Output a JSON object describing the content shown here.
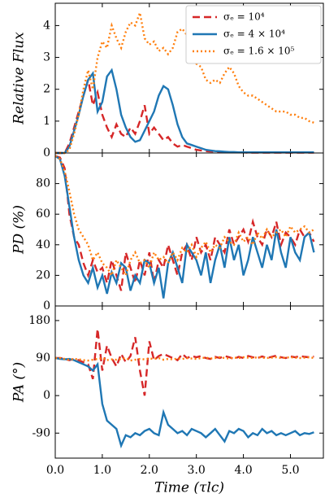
{
  "chart_data": [
    {
      "type": "line",
      "ylabel": "Relative Flux",
      "legend": "upper right",
      "xlim": [
        0,
        5.7
      ],
      "ylim": [
        0,
        4.7
      ],
      "yticks": [
        0,
        1,
        2,
        3,
        4
      ],
      "x": [
        0,
        0.1,
        0.2,
        0.3,
        0.4,
        0.5,
        0.6,
        0.7,
        0.8,
        0.9,
        1,
        1.1,
        1.2,
        1.3,
        1.4,
        1.5,
        1.6,
        1.7,
        1.8,
        1.9,
        2,
        2.1,
        2.2,
        2.3,
        2.4,
        2.5,
        2.6,
        2.7,
        2.8,
        2.9,
        3,
        3.1,
        3.2,
        3.3,
        3.4,
        3.5,
        3.6,
        3.7,
        3.8,
        3.9,
        4,
        4.1,
        4.2,
        4.3,
        4.4,
        4.5,
        4.6,
        4.7,
        4.8,
        4.9,
        5,
        5.1,
        5.2,
        5.3,
        5.4,
        5.5
      ],
      "series": [
        {
          "name": "σₑ = 10⁴",
          "color": "#d62728",
          "style": "dashed",
          "values": [
            0,
            0,
            0,
            0.3,
            0.8,
            1.3,
            1.8,
            2.3,
            1.5,
            1.9,
            1.2,
            0.8,
            0.5,
            0.9,
            0.6,
            0.5,
            0.8,
            0.6,
            1.0,
            1.5,
            0.6,
            0.8,
            0.6,
            0.4,
            0.5,
            0.3,
            0.2,
            0.25,
            0.2,
            0.15,
            0.1,
            0.08,
            0.06,
            0.05,
            0.04,
            0.03,
            0.03,
            0.02,
            0.02,
            0.02,
            0.02,
            0.01,
            0.01,
            0.01,
            0.01,
            0.01,
            0.01,
            0.01,
            0.01,
            0.01,
            0.01,
            0.01,
            0.01,
            0.01,
            0.01,
            0.01
          ]
        },
        {
          "name": "σₑ = 4 × 10⁴",
          "color": "#1f77b4",
          "style": "solid",
          "values": [
            0,
            0,
            0,
            0.2,
            0.7,
            1.2,
            1.8,
            2.3,
            2.5,
            1.3,
            1.6,
            2.4,
            2.6,
            2.0,
            1.2,
            0.8,
            0.5,
            0.35,
            0.4,
            0.7,
            1.0,
            1.3,
            1.8,
            2.1,
            2.0,
            1.5,
            0.9,
            0.5,
            0.3,
            0.25,
            0.2,
            0.15,
            0.1,
            0.08,
            0.06,
            0.05,
            0.04,
            0.03,
            0.03,
            0.02,
            0.02,
            0.02,
            0.02,
            0.02,
            0.02,
            0.02,
            0.02,
            0.02,
            0.02,
            0.02,
            0.02,
            0.02,
            0.02,
            0.02,
            0.02,
            0.02
          ]
        },
        {
          "name": "σₑ = 1.6 × 10⁵",
          "color": "#ff7f0e",
          "style": "dotted",
          "values": [
            0,
            0,
            0,
            0.1,
            0.6,
            1.2,
            2.0,
            2.6,
            2.0,
            3.0,
            3.5,
            3.3,
            4.0,
            3.6,
            3.3,
            3.8,
            4.1,
            4.0,
            4.4,
            3.6,
            3.4,
            3.5,
            3.2,
            3.3,
            3.1,
            3.3,
            3.8,
            3.9,
            3.7,
            3.3,
            2.8,
            2.7,
            2.3,
            2.2,
            2.3,
            2.2,
            2.5,
            2.7,
            2.5,
            2.1,
            1.9,
            1.8,
            1.8,
            1.7,
            1.6,
            1.5,
            1.4,
            1.3,
            1.3,
            1.3,
            1.2,
            1.2,
            1.1,
            1.1,
            1.0,
            0.95
          ]
        }
      ]
    },
    {
      "type": "line",
      "ylabel": "PD (%)",
      "xlim": [
        0,
        5.7
      ],
      "ylim": [
        0,
        100
      ],
      "yticks": [
        0,
        20,
        40,
        60,
        80
      ],
      "x": [
        0,
        0.1,
        0.2,
        0.3,
        0.4,
        0.5,
        0.6,
        0.7,
        0.8,
        0.9,
        1,
        1.1,
        1.2,
        1.3,
        1.4,
        1.5,
        1.6,
        1.7,
        1.8,
        1.9,
        2,
        2.1,
        2.2,
        2.3,
        2.4,
        2.5,
        2.6,
        2.7,
        2.8,
        2.9,
        3,
        3.1,
        3.2,
        3.3,
        3.4,
        3.5,
        3.6,
        3.7,
        3.8,
        3.9,
        4,
        4.1,
        4.2,
        4.3,
        4.4,
        4.5,
        4.6,
        4.7,
        4.8,
        4.9,
        5,
        5.1,
        5.2,
        5.3,
        5.4,
        5.5
      ],
      "series": [
        {
          "color": "#d62728",
          "style": "dashed",
          "values": [
            98,
            97,
            90,
            60,
            45,
            40,
            28,
            20,
            30,
            22,
            25,
            15,
            30,
            20,
            10,
            35,
            25,
            15,
            30,
            20,
            35,
            15,
            30,
            25,
            40,
            30,
            20,
            35,
            40,
            30,
            45,
            35,
            40,
            30,
            45,
            40,
            35,
            50,
            40,
            45,
            50,
            42,
            55,
            45,
            40,
            50,
            45,
            55,
            40,
            48,
            45,
            40,
            50,
            45,
            48,
            42
          ]
        },
        {
          "color": "#1f77b4",
          "style": "solid",
          "values": [
            98,
            96,
            85,
            65,
            45,
            30,
            20,
            15,
            25,
            12,
            20,
            8,
            22,
            15,
            28,
            25,
            10,
            20,
            15,
            30,
            28,
            15,
            25,
            5,
            28,
            35,
            25,
            15,
            40,
            35,
            30,
            20,
            35,
            15,
            30,
            40,
            25,
            45,
            30,
            40,
            20,
            30,
            45,
            35,
            25,
            40,
            30,
            50,
            35,
            25,
            45,
            35,
            30,
            45,
            48,
            35
          ]
        },
        {
          "color": "#ff7f0e",
          "style": "dotted",
          "values": [
            98,
            96,
            88,
            75,
            60,
            50,
            45,
            40,
            30,
            35,
            28,
            25,
            20,
            30,
            25,
            20,
            30,
            35,
            28,
            30,
            25,
            35,
            30,
            32,
            28,
            35,
            30,
            38,
            35,
            40,
            32,
            38,
            42,
            35,
            40,
            38,
            45,
            42,
            40,
            48,
            42,
            45,
            40,
            48,
            44,
            50,
            45,
            48,
            50,
            45,
            52,
            48,
            50,
            52,
            48,
            50
          ]
        }
      ]
    },
    {
      "type": "line",
      "ylabel": "PA (°)",
      "xlabel": "Time (τlc)",
      "xlim": [
        0,
        5.7
      ],
      "ylim": [
        -150,
        215
      ],
      "yticks": [
        -90,
        0,
        90,
        180
      ],
      "xticks": [
        {
          "value": 0,
          "label": "0.0"
        },
        {
          "value": 1,
          "label": "1.0"
        },
        {
          "value": 2,
          "label": "2.0"
        },
        {
          "value": 3,
          "label": "3.0"
        },
        {
          "value": 4,
          "label": "4.0"
        },
        {
          "value": 5,
          "label": "5.0"
        }
      ],
      "x": [
        0,
        0.1,
        0.2,
        0.3,
        0.4,
        0.5,
        0.6,
        0.7,
        0.8,
        0.9,
        1,
        1.1,
        1.2,
        1.3,
        1.4,
        1.5,
        1.6,
        1.7,
        1.8,
        1.9,
        2,
        2.1,
        2.2,
        2.3,
        2.4,
        2.5,
        2.6,
        2.7,
        2.8,
        2.9,
        3,
        3.1,
        3.2,
        3.3,
        3.4,
        3.5,
        3.6,
        3.7,
        3.8,
        3.9,
        4,
        4.1,
        4.2,
        4.3,
        4.4,
        4.5,
        4.6,
        4.7,
        4.8,
        4.9,
        5,
        5.1,
        5.2,
        5.3,
        5.4,
        5.5
      ],
      "series": [
        {
          "color": "#d62728",
          "style": "dashed",
          "values": [
            90,
            90,
            88,
            85,
            88,
            85,
            80,
            75,
            40,
            160,
            60,
            120,
            90,
            70,
            100,
            80,
            95,
            140,
            60,
            0,
            130,
            85,
            95,
            100,
            95,
            90,
            85,
            100,
            90,
            95,
            92,
            95,
            90,
            88,
            93,
            90,
            95,
            92,
            88,
            93,
            90,
            95,
            92,
            90,
            94,
            90,
            93,
            96,
            92,
            90,
            94,
            92,
            95,
            93,
            92,
            94
          ]
        },
        {
          "color": "#1f77b4",
          "style": "solid",
          "values": [
            90,
            88,
            87,
            88,
            85,
            80,
            75,
            70,
            60,
            75,
            -20,
            -60,
            -70,
            -80,
            -120,
            -95,
            -100,
            -90,
            -95,
            -85,
            -80,
            -90,
            -95,
            -40,
            -70,
            -80,
            -90,
            -85,
            -95,
            -80,
            -85,
            -90,
            -100,
            -90,
            -80,
            -95,
            -110,
            -85,
            -90,
            -80,
            -85,
            -100,
            -90,
            -95,
            -80,
            -90,
            -85,
            -95,
            -90,
            -95,
            -90,
            -85,
            -95,
            -90,
            -92,
            -88
          ]
        },
        {
          "color": "#ff7f0e",
          "style": "dotted",
          "values": [
            90,
            90,
            88,
            86,
            88,
            87,
            85,
            84,
            86,
            88,
            90,
            85,
            87,
            86,
            88,
            90,
            84,
            86,
            88,
            87,
            89,
            88,
            90,
            86,
            88,
            87,
            89,
            88,
            90,
            89,
            88,
            90,
            91,
            89,
            90,
            92,
            90,
            89,
            91,
            90,
            92,
            91,
            90,
            92,
            91,
            90,
            91,
            92,
            90,
            91,
            92,
            91,
            90,
            91,
            92,
            90
          ]
        }
      ]
    }
  ]
}
